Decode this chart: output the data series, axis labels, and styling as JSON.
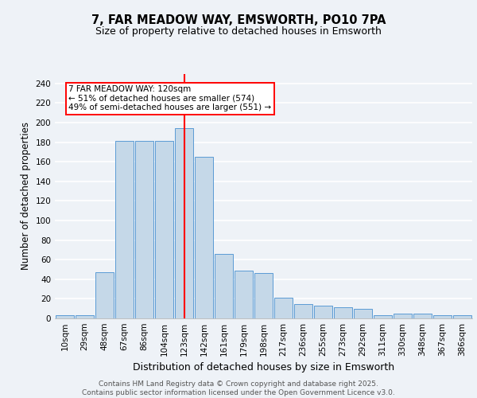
{
  "title": "7, FAR MEADOW WAY, EMSWORTH, PO10 7PA",
  "subtitle": "Size of property relative to detached houses in Emsworth",
  "xlabel": "Distribution of detached houses by size in Emsworth",
  "ylabel": "Number of detached properties",
  "categories": [
    "10sqm",
    "29sqm",
    "48sqm",
    "67sqm",
    "86sqm",
    "104sqm",
    "123sqm",
    "142sqm",
    "161sqm",
    "179sqm",
    "198sqm",
    "217sqm",
    "236sqm",
    "255sqm",
    "273sqm",
    "292sqm",
    "311sqm",
    "330sqm",
    "348sqm",
    "367sqm",
    "386sqm"
  ],
  "values": [
    3,
    3,
    47,
    181,
    181,
    181,
    194,
    165,
    66,
    49,
    46,
    21,
    15,
    13,
    11,
    10,
    3,
    5,
    5,
    3,
    3
  ],
  "bar_color": "#c5d8e8",
  "bar_edge_color": "#5b9bd5",
  "redline_index": 6,
  "redline_label": "7 FAR MEADOW WAY: 120sqm",
  "annotation_line2": "← 51% of detached houses are smaller (574)",
  "annotation_line3": "49% of semi-detached houses are larger (551) →",
  "ylim": [
    0,
    250
  ],
  "yticks": [
    0,
    20,
    40,
    60,
    80,
    100,
    120,
    140,
    160,
    180,
    200,
    220,
    240
  ],
  "background_color": "#eef2f7",
  "grid_color": "#ffffff",
  "footer": "Contains HM Land Registry data © Crown copyright and database right 2025.\nContains public sector information licensed under the Open Government Licence v3.0.",
  "title_fontsize": 10.5,
  "subtitle_fontsize": 9,
  "axis_label_fontsize": 8.5,
  "tick_fontsize": 7.5,
  "annotation_fontsize": 7.5,
  "footer_fontsize": 6.5
}
